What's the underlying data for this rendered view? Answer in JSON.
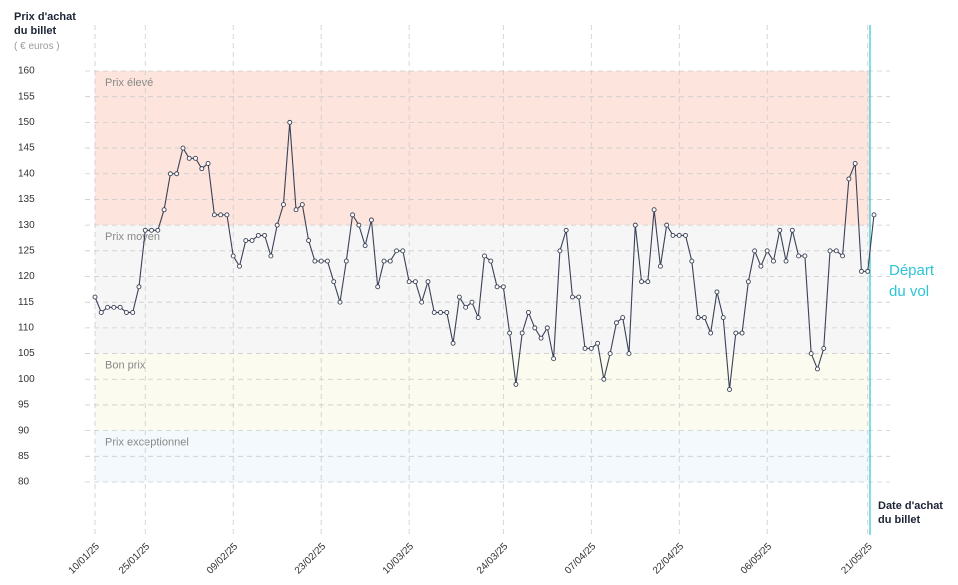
{
  "chart_data": {
    "type": "line",
    "y_label": "Prix d'achat du billet",
    "y_unit": "( € euros )",
    "x_label": "Date d'achat du billet",
    "annotation": "Départ du vol",
    "bands": [
      {
        "name": "Prix élevé",
        "from": 130,
        "to": 160,
        "color": "#fde4dd"
      },
      {
        "name": "Prix moyen",
        "from": 105,
        "to": 130,
        "color": "#f6f6f7"
      },
      {
        "name": "Bon prix",
        "from": 90,
        "to": 105,
        "color": "#fbfbef"
      },
      {
        "name": "Prix exceptionnel",
        "from": 80,
        "to": 90,
        "color": "#f3f9fc"
      }
    ],
    "categories": [
      "10/01/25",
      null,
      null,
      null,
      null,
      null,
      null,
      null,
      "25/01/25",
      null,
      null,
      null,
      null,
      null,
      null,
      null,
      null,
      null,
      null,
      null,
      null,
      null,
      "09/02/25",
      null,
      null,
      null,
      null,
      null,
      null,
      null,
      null,
      null,
      null,
      null,
      null,
      null,
      "23/02/25",
      null,
      null,
      null,
      null,
      null,
      null,
      null,
      null,
      null,
      null,
      null,
      null,
      null,
      "10/03/25",
      null,
      null,
      null,
      null,
      null,
      null,
      null,
      null,
      null,
      null,
      null,
      null,
      null,
      null,
      "24/03/25",
      null,
      null,
      null,
      null,
      null,
      null,
      null,
      null,
      null,
      null,
      null,
      null,
      null,
      "07/04/25",
      null,
      null,
      null,
      null,
      null,
      null,
      null,
      null,
      null,
      null,
      null,
      null,
      null,
      "22/04/25",
      null,
      null,
      null,
      null,
      null,
      null,
      null,
      null,
      null,
      null,
      null,
      null,
      null,
      "06/05/25",
      null,
      null,
      null,
      null,
      null,
      null,
      null,
      null,
      null,
      null,
      null,
      null,
      null,
      null,
      null,
      "21/05/25",
      null
    ],
    "series": [
      {
        "name": "Prix",
        "color": "#3b4256",
        "values": [
          116,
          113,
          114,
          114,
          114,
          113,
          113,
          118,
          129,
          129,
          129,
          133,
          140,
          140,
          145,
          143,
          143,
          141,
          142,
          132,
          132,
          132,
          124,
          122,
          127,
          127,
          128,
          128,
          124,
          130,
          134,
          150,
          133,
          134,
          127,
          123,
          123,
          123,
          119,
          115,
          123,
          132,
          130,
          126,
          131,
          118,
          123,
          123,
          125,
          125,
          119,
          119,
          115,
          119,
          113,
          113,
          113,
          107,
          116,
          114,
          115,
          112,
          124,
          123,
          118,
          118,
          109,
          99,
          109,
          113,
          110,
          108,
          110,
          104,
          125,
          129,
          116,
          116,
          106,
          106,
          107,
          100,
          105,
          111,
          112,
          105,
          130,
          119,
          119,
          133,
          122,
          130,
          128,
          128,
          128,
          123,
          112,
          112,
          109,
          117,
          112,
          98,
          109,
          109,
          119,
          125,
          122,
          125,
          123,
          129,
          123,
          129,
          124,
          124,
          105,
          102,
          106,
          125,
          125,
          124,
          139,
          142,
          121,
          121,
          132
        ]
      }
    ],
    "ylim": [
      80,
      160
    ],
    "yticks": [
      80,
      85,
      90,
      95,
      100,
      105,
      110,
      115,
      120,
      125,
      130,
      135,
      140,
      145,
      150,
      155,
      160
    ],
    "grid": true,
    "departure_color": "#2ec4d6"
  }
}
